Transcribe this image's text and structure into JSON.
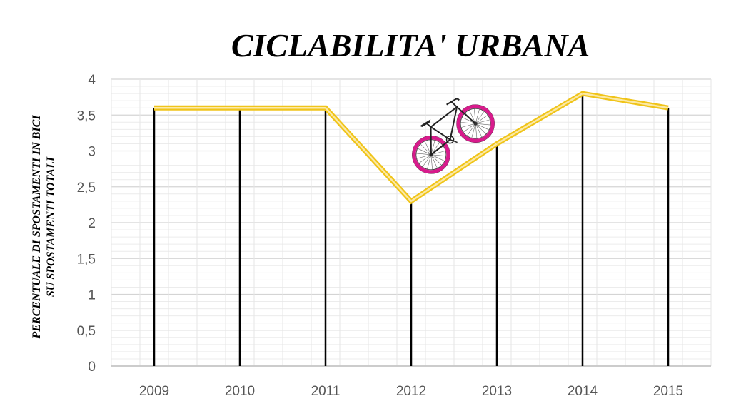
{
  "chart_data": {
    "type": "line",
    "title": "CICLABILITA' URBANA",
    "ylabel_line1": "PERCENTUALE DI SPOSTAMENTI IN BICI",
    "ylabel_line2": "SU SPOSTAMENTI TOTALI",
    "xlabel": "",
    "categories": [
      "2009",
      "2010",
      "2011",
      "2012",
      "2013",
      "2014",
      "2015"
    ],
    "values": [
      3.6,
      3.6,
      3.6,
      2.3,
      3.1,
      3.8,
      3.6
    ],
    "ylim": [
      0,
      4
    ],
    "yticks": [
      "0",
      "0,5",
      "1",
      "1,5",
      "2",
      "2,5",
      "3",
      "3,5",
      "4"
    ],
    "grid": true,
    "line_color": "#f0c419",
    "drop_line_color": "#000000",
    "bicycle_wheel_color": "#d81b8c"
  }
}
